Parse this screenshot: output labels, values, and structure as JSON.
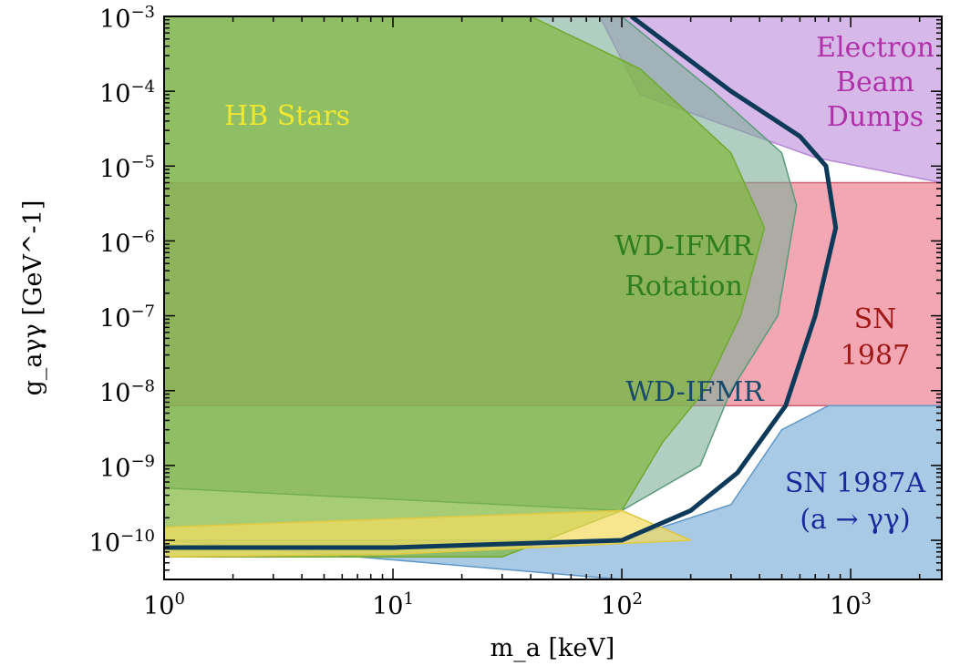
{
  "chart_data": {
    "type": "area",
    "xlabel": "m_a [keV]",
    "ylabel": "g_aγγ [GeV^-1]",
    "xscale": "log",
    "yscale": "log",
    "xlim": [
      1,
      2500
    ],
    "ylim": [
      3e-11,
      0.001
    ],
    "x_ticks": [
      {
        "base": "10",
        "exp": "0",
        "value": 1
      },
      {
        "base": "10",
        "exp": "1",
        "value": 10
      },
      {
        "base": "10",
        "exp": "2",
        "value": 100
      },
      {
        "base": "10",
        "exp": "3",
        "value": 1000
      }
    ],
    "y_ticks": [
      {
        "base": "10",
        "exp": "−3",
        "value": 0.001
      },
      {
        "base": "10",
        "exp": "−4",
        "value": 0.0001
      },
      {
        "base": "10",
        "exp": "−5",
        "value": 1e-05
      },
      {
        "base": "10",
        "exp": "−6",
        "value": 1e-06
      },
      {
        "base": "10",
        "exp": "−7",
        "value": 1e-07
      },
      {
        "base": "10",
        "exp": "−8",
        "value": 1e-08
      },
      {
        "base": "10",
        "exp": "−9",
        "value": 1e-09
      },
      {
        "base": "10",
        "exp": "−10",
        "value": 1e-10
      }
    ],
    "regions": [
      {
        "id": "electron-beam-dumps",
        "label_lines": [
          "Electron",
          "Beam",
          "Dumps"
        ],
        "fill": "#c8a2e0",
        "stroke": "#b888d8",
        "opacity": 0.75,
        "points": [
          [
            80,
            0.001
          ],
          [
            2500,
            0.001
          ],
          [
            2500,
            6e-06
          ],
          [
            700,
            1.3e-05
          ],
          [
            120,
            9e-05
          ],
          [
            80,
            0.001
          ]
        ]
      },
      {
        "id": "sn-1987",
        "label_lines": [
          "SN",
          "1987"
        ],
        "fill": "#ee8a9a",
        "stroke": "#d06070",
        "opacity": 0.75,
        "points": [
          [
            1,
            6e-06
          ],
          [
            2500,
            6e-06
          ],
          [
            2500,
            6.3e-09
          ],
          [
            1,
            6.3e-09
          ]
        ]
      },
      {
        "id": "sn-1987a-gg",
        "label_lines": [
          "SN 1987A",
          "(a → γγ)"
        ],
        "fill": "#8cb8dc",
        "stroke": "#5e98c8",
        "opacity": 0.75,
        "points": [
          [
            1,
            1e-10
          ],
          [
            100,
            1e-10
          ],
          [
            300,
            3e-10
          ],
          [
            500,
            3e-09
          ],
          [
            800,
            6.3e-09
          ],
          [
            2500,
            6.3e-09
          ],
          [
            2500,
            3e-11
          ],
          [
            100,
            3e-11
          ],
          [
            1,
            1e-10
          ]
        ]
      },
      {
        "id": "wd-ifmr",
        "label_lines": [
          "WD-IFMR"
        ],
        "fill": "#7dae9a",
        "stroke": "#5a9a7a",
        "opacity": 0.6,
        "points": [
          [
            55,
            0.001
          ],
          [
            100,
            0.001
          ],
          [
            250,
            0.0001
          ],
          [
            500,
            1.5e-05
          ],
          [
            580,
            3e-06
          ],
          [
            480,
            1e-07
          ],
          [
            300,
            1e-08
          ],
          [
            220,
            1e-09
          ],
          [
            100,
            2.5e-10
          ],
          [
            1,
            5e-10
          ],
          [
            1,
            0.001
          ]
        ]
      },
      {
        "id": "wd-ifmr-rotation",
        "label_lines": [
          "WD-IFMR",
          "Rotation"
        ],
        "fill": "#80b83c",
        "stroke": "#70a830",
        "opacity": 0.7,
        "points": [
          [
            1,
            0.001
          ],
          [
            40,
            0.001
          ],
          [
            120,
            0.0002
          ],
          [
            300,
            1.5e-05
          ],
          [
            420,
            1.5e-06
          ],
          [
            330,
            1e-07
          ],
          [
            230,
            1e-08
          ],
          [
            150,
            2e-09
          ],
          [
            100,
            2.5e-10
          ],
          [
            30,
            6e-11
          ],
          [
            1,
            6e-11
          ]
        ]
      },
      {
        "id": "hb-stars",
        "label_lines": [
          "HB Stars"
        ],
        "fill": "#f5dc60",
        "stroke": "#e0c840",
        "opacity": 0.7,
        "points": [
          [
            1,
            1.5e-10
          ],
          [
            100,
            2.5e-10
          ],
          [
            200,
            1e-10
          ],
          [
            10,
            6.5e-11
          ],
          [
            1,
            6e-11
          ]
        ]
      }
    ],
    "region_label_colors": {
      "electron-beam-dumps": "#b030a8",
      "sn-1987": "#a01818",
      "sn-1987a-gg": "#1a2a9a",
      "wd-ifmr": "#1a4a6a",
      "wd-ifmr-rotation": "#2e7d1e",
      "hb-stars": "#f0e830"
    },
    "bound_line": {
      "color": "#0e3a5a",
      "points": [
        [
          1,
          8e-11
        ],
        [
          10,
          8e-11
        ],
        [
          100,
          1e-10
        ],
        [
          200,
          2.5e-10
        ],
        [
          320,
          8e-10
        ],
        [
          520,
          6.3e-09
        ],
        [
          700,
          1e-07
        ],
        [
          860,
          1.5e-06
        ],
        [
          780,
          1e-05
        ],
        [
          600,
          2.5e-05
        ],
        [
          300,
          0.0001
        ],
        [
          110,
          0.001
        ]
      ]
    }
  }
}
